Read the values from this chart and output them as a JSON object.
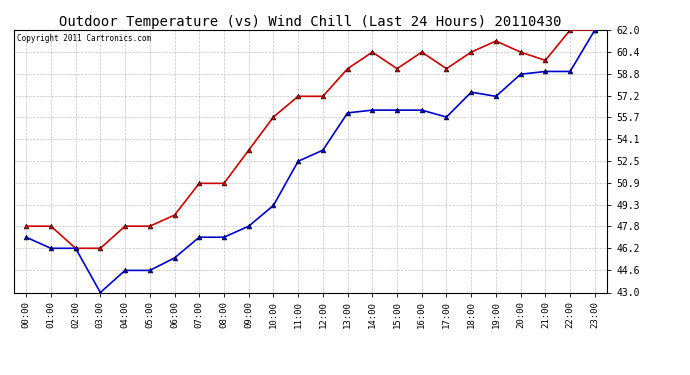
{
  "title": "Outdoor Temperature (vs) Wind Chill (Last 24 Hours) 20110430",
  "copyright": "Copyright 2011 Cartronics.com",
  "x_labels": [
    "00:00",
    "01:00",
    "02:00",
    "03:00",
    "04:00",
    "05:00",
    "06:00",
    "07:00",
    "08:00",
    "09:00",
    "10:00",
    "11:00",
    "12:00",
    "13:00",
    "14:00",
    "15:00",
    "16:00",
    "17:00",
    "18:00",
    "19:00",
    "20:00",
    "21:00",
    "22:00",
    "23:00"
  ],
  "temp_red": [
    47.8,
    47.8,
    46.2,
    46.2,
    47.8,
    47.8,
    48.6,
    50.9,
    50.9,
    53.3,
    55.7,
    57.2,
    57.2,
    59.2,
    60.4,
    59.2,
    60.4,
    59.2,
    60.4,
    61.2,
    60.4,
    59.8,
    62.0,
    62.0
  ],
  "wind_chill_blue": [
    47.0,
    46.2,
    46.2,
    43.0,
    44.6,
    44.6,
    45.5,
    47.0,
    47.0,
    47.8,
    49.3,
    52.5,
    53.3,
    56.0,
    56.2,
    56.2,
    56.2,
    55.7,
    57.5,
    57.2,
    58.8,
    59.0,
    59.0,
    62.0
  ],
  "ylim": [
    43.0,
    62.0
  ],
  "yticks": [
    43.0,
    44.6,
    46.2,
    47.8,
    49.3,
    50.9,
    52.5,
    54.1,
    55.7,
    57.2,
    58.8,
    60.4,
    62.0
  ],
  "red_color": "#cc0000",
  "blue_color": "#0000cc",
  "background_color": "#ffffff",
  "grid_color": "#bbbbbb",
  "title_fontsize": 10,
  "marker": "^",
  "marker_size": 3.5,
  "linewidth": 1.2
}
